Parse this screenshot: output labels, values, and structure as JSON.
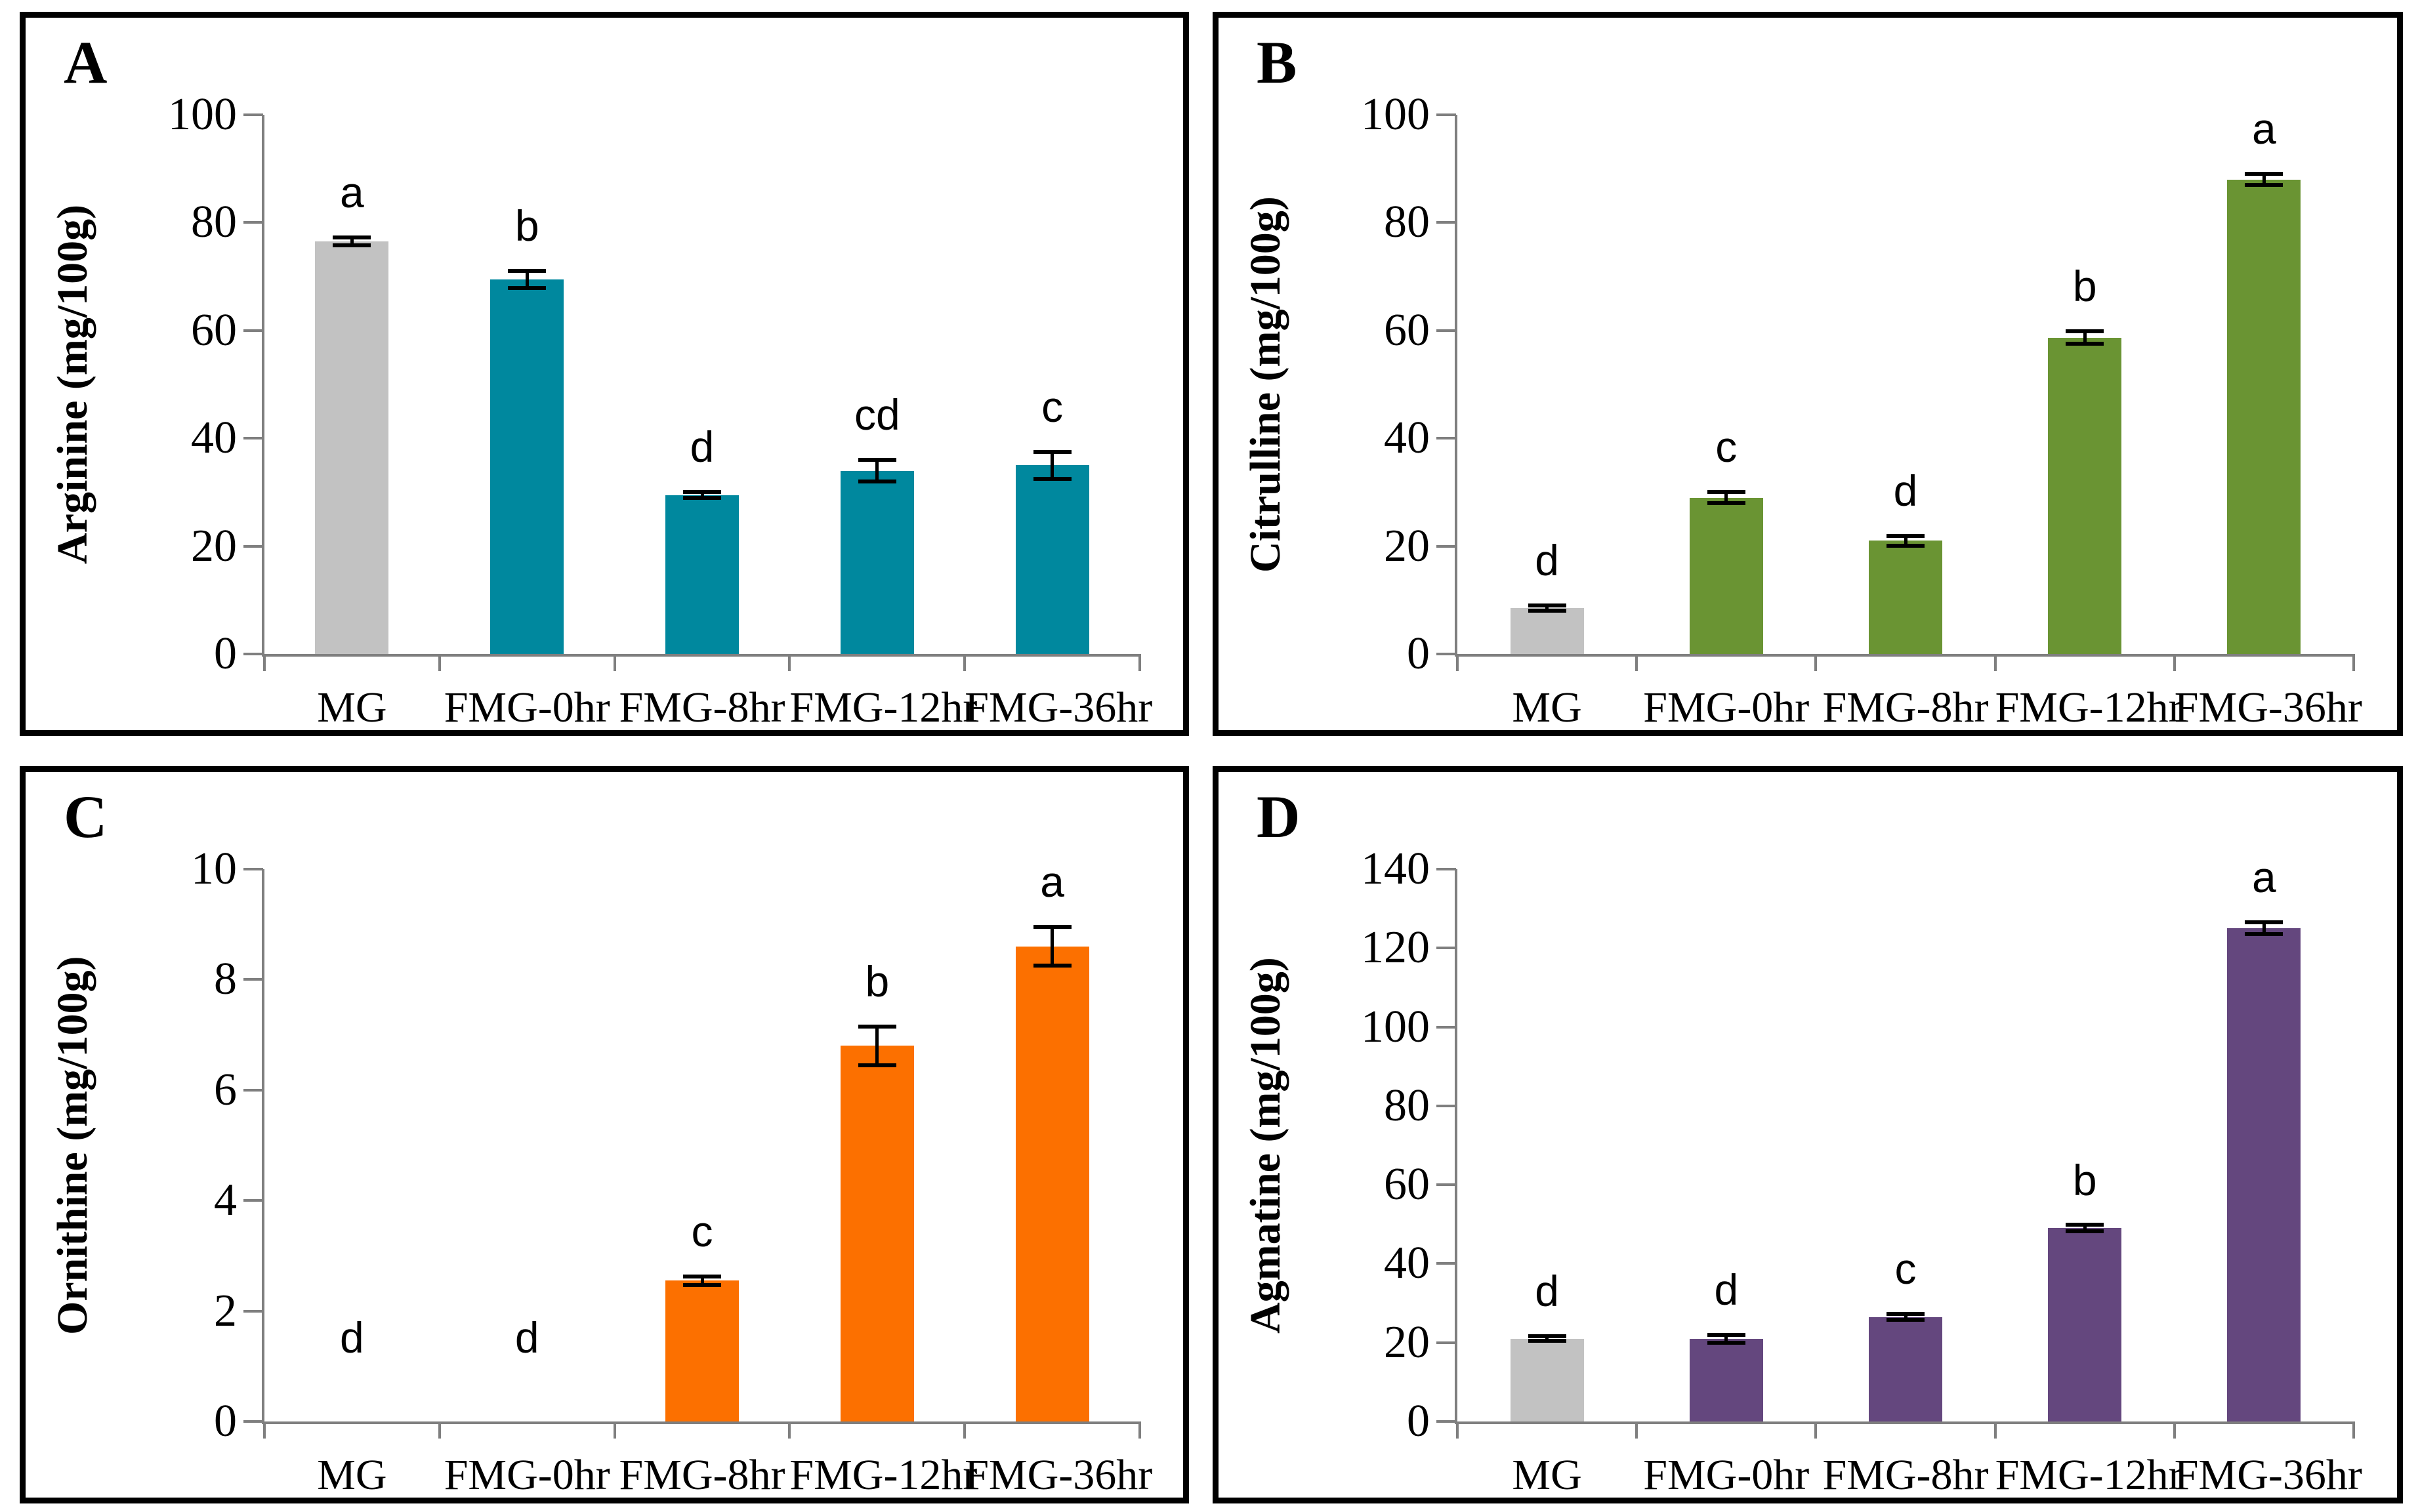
{
  "figure": {
    "description": "Four-panel bar chart figure of amino acid contents",
    "colors": {
      "background": "#ffffff",
      "panel_border": "#000000",
      "axis": "#7f7f7f",
      "text": "#000000",
      "mg_bar": "#c2c2c2",
      "arginine_bar": "#00889e",
      "citrulline_bar": "#6a9433",
      "ornithine_bar": "#fc7000",
      "agmatine_bar": "#64477e"
    }
  },
  "chart_data": [
    {
      "type": "bar",
      "panel_letter": "A",
      "ylabel": "Arginine (mg/100g)",
      "xlabel": "",
      "categories": [
        "MG",
        "FMG-0hr",
        "FMG-8hr",
        "FMG-12hr",
        "FMG-36hr"
      ],
      "values": [
        76.5,
        69.5,
        29.5,
        34,
        35
      ],
      "errors": [
        0.7,
        1.6,
        0.6,
        2.0,
        2.5
      ],
      "sig_letters": [
        "a",
        "b",
        "d",
        "cd",
        "c"
      ],
      "ylim": [
        0,
        100
      ],
      "yticks": [
        0,
        20,
        40,
        60,
        80,
        100
      ],
      "grid": false,
      "legend": "none",
      "bar_colors": [
        "#c2c2c2",
        "#00889e",
        "#00889e",
        "#00889e",
        "#00889e"
      ]
    },
    {
      "type": "bar",
      "panel_letter": "B",
      "ylabel": "Citrulline (mg/100g)",
      "xlabel": "",
      "categories": [
        "MG",
        "FMG-0hr",
        "FMG-8hr",
        "FMG-12hr",
        "FMG-36hr"
      ],
      "values": [
        8.5,
        29,
        21,
        58.7,
        88
      ],
      "errors": [
        0.5,
        1.0,
        0.9,
        1.2,
        1.0
      ],
      "sig_letters": [
        "d",
        "c",
        "d",
        "b",
        "a"
      ],
      "ylim": [
        0,
        100
      ],
      "yticks": [
        0,
        20,
        40,
        60,
        80,
        100
      ],
      "grid": false,
      "legend": "none",
      "bar_colors": [
        "#c2c2c2",
        "#6a9433",
        "#6a9433",
        "#6a9433",
        "#6a9433"
      ]
    },
    {
      "type": "bar",
      "panel_letter": "C",
      "ylabel": "Ornithine (mg/100g)",
      "xlabel": "",
      "categories": [
        "MG",
        "FMG-0hr",
        "FMG-8hr",
        "FMG-12hr",
        "FMG-36hr"
      ],
      "values": [
        0,
        0,
        2.55,
        6.8,
        8.6
      ],
      "errors": [
        0,
        0,
        0.08,
        0.35,
        0.35
      ],
      "sig_letters": [
        "d",
        "d",
        "c",
        "b",
        "a"
      ],
      "ylim": [
        0,
        10
      ],
      "yticks": [
        0,
        2,
        4,
        6,
        8,
        10
      ],
      "grid": false,
      "legend": "none",
      "bar_colors": [
        "#fc7000",
        "#fc7000",
        "#fc7000",
        "#fc7000",
        "#fc7000"
      ]
    },
    {
      "type": "bar",
      "panel_letter": "D",
      "ylabel": "Agmatine (mg/100g)",
      "xlabel": "",
      "categories": [
        "MG",
        "FMG-0hr",
        "FMG-8hr",
        "FMG-12hr",
        "FMG-36hr"
      ],
      "values": [
        21,
        21,
        26.5,
        49,
        125
      ],
      "errors": [
        0.6,
        1.0,
        0.8,
        0.8,
        1.5
      ],
      "sig_letters": [
        "d",
        "d",
        "c",
        "b",
        "a"
      ],
      "ylim": [
        0,
        140
      ],
      "yticks": [
        0,
        20,
        40,
        60,
        80,
        100,
        120,
        140
      ],
      "grid": false,
      "legend": "none",
      "bar_colors": [
        "#c2c2c2",
        "#64477e",
        "#64477e",
        "#64477e",
        "#64477e"
      ]
    }
  ]
}
